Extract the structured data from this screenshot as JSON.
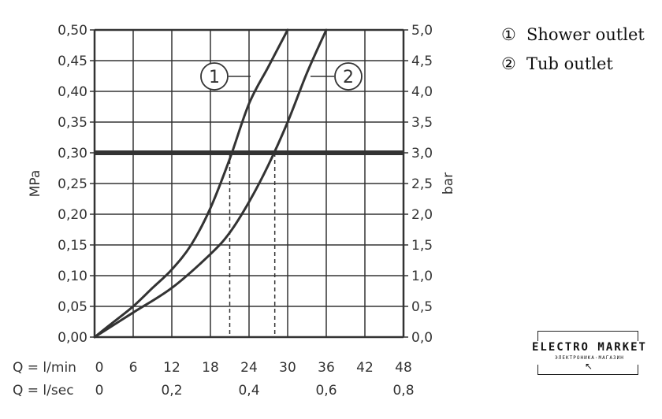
{
  "chart_data": {
    "type": "line",
    "y_left": {
      "label": "MPa",
      "range": [
        0,
        0.5
      ],
      "ticks": [
        "0,00",
        "0,05",
        "0,10",
        "0,15",
        "0,20",
        "0,25",
        "0,30",
        "0,35",
        "0,40",
        "0,45",
        "0,50"
      ]
    },
    "y_right": {
      "label": "bar",
      "range": [
        0,
        5
      ],
      "ticks": [
        "0,0",
        "0,5",
        "1,0",
        "1,5",
        "2,0",
        "2,5",
        "3,0",
        "3,5",
        "4,0",
        "4,5",
        "5,0"
      ]
    },
    "x_primary": {
      "label": "Q = l/min",
      "range": [
        0,
        48
      ],
      "ticks": [
        "0",
        "6",
        "12",
        "18",
        "24",
        "30",
        "36",
        "42",
        "48"
      ]
    },
    "x_secondary": {
      "label": "Q = l/sec",
      "ticks": [
        {
          "value": 0,
          "label": "0"
        },
        {
          "value": 0.2,
          "label": "0,2"
        },
        {
          "value": 0.4,
          "label": "0,4"
        },
        {
          "value": 0.6,
          "label": "0,6"
        },
        {
          "value": 0.8,
          "label": "0,8"
        }
      ]
    },
    "grid": true,
    "reference_line": {
      "y": 0.3,
      "style": "thick"
    },
    "drop_lines": [
      {
        "x": 21,
        "y": 0.3
      },
      {
        "x": 28,
        "y": 0.3
      }
    ],
    "series": [
      {
        "name": "Shower outlet",
        "marker": "1",
        "x": [
          0,
          3,
          6,
          9,
          12,
          15,
          18,
          21,
          24,
          27,
          30
        ],
        "y": [
          0,
          0.025,
          0.05,
          0.08,
          0.11,
          0.15,
          0.21,
          0.29,
          0.38,
          0.44,
          0.5
        ],
        "label_at": {
          "x": 24,
          "y": 0.45
        }
      },
      {
        "name": "Tub outlet",
        "marker": "2",
        "x": [
          0,
          6,
          12,
          18,
          21,
          24,
          27,
          30,
          33,
          36
        ],
        "y": [
          0,
          0.04,
          0.08,
          0.135,
          0.17,
          0.22,
          0.28,
          0.35,
          0.43,
          0.5
        ],
        "label_at": {
          "x": 33,
          "y": 0.45
        }
      }
    ],
    "legend": {
      "placement": "top-right"
    }
  },
  "legend_items": [
    {
      "key": "①",
      "label": "Shower outlet"
    },
    {
      "key": "②",
      "label": "Tub outlet"
    }
  ],
  "logo": {
    "text": "ELECTRO MARKET",
    "subtext": "ЭЛЕКТРОНИКА·МАГАЗИН"
  },
  "colors": {
    "line": "#333333",
    "grid": "#333333",
    "reference": "#333333"
  }
}
